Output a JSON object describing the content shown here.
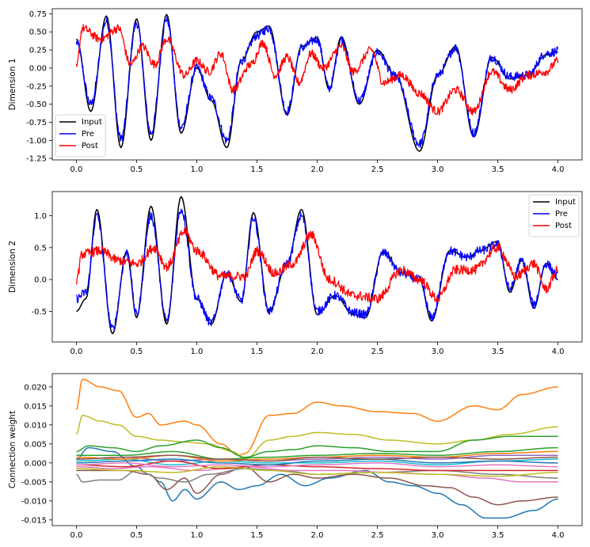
{
  "chart_data": [
    {
      "type": "line",
      "ylabel": "Dimension 1",
      "xlim": [
        -0.2,
        4.2
      ],
      "ylim": [
        -1.27,
        0.82
      ],
      "xticks": [
        "0.0",
        "0.5",
        "1.0",
        "1.5",
        "2.0",
        "2.5",
        "3.0",
        "3.5",
        "4.0"
      ],
      "yticks": [
        "0.75",
        "0.50",
        "0.25",
        "0.00",
        "-0.25",
        "-0.50",
        "-0.75",
        "-1.00",
        "-1.25"
      ],
      "legend_placement": "lower-left",
      "series": [
        {
          "name": "Input",
          "color": "#000000",
          "noise": 0,
          "x": [
            0,
            0.12,
            0.25,
            0.37,
            0.5,
            0.62,
            0.75,
            0.87,
            1.0,
            1.12,
            1.25,
            1.37,
            1.5,
            1.6,
            1.75,
            1.87,
            2.0,
            2.1,
            2.2,
            2.35,
            2.5,
            2.65,
            2.85,
            3.0,
            3.15,
            3.3,
            3.45,
            3.6,
            3.75,
            3.9,
            4.0
          ],
          "y": [
            0.4,
            -0.6,
            0.72,
            -1.1,
            0.68,
            -1.0,
            0.74,
            -0.9,
            0.0,
            -0.45,
            -1.1,
            0.1,
            0.5,
            0.58,
            -0.65,
            0.3,
            0.42,
            -0.3,
            0.43,
            -0.5,
            0.25,
            -0.1,
            -1.15,
            -0.1,
            0.3,
            -0.95,
            0.15,
            -0.15,
            -0.1,
            0.18,
            0.22
          ]
        },
        {
          "name": "Pre",
          "color": "#0000ff",
          "noise": 0.03,
          "x": [
            0,
            0.12,
            0.25,
            0.37,
            0.5,
            0.62,
            0.75,
            0.87,
            1.0,
            1.12,
            1.25,
            1.37,
            1.5,
            1.6,
            1.75,
            1.87,
            2.0,
            2.1,
            2.2,
            2.35,
            2.5,
            2.65,
            2.85,
            3.0,
            3.15,
            3.3,
            3.45,
            3.6,
            3.75,
            3.9,
            4.0
          ],
          "y": [
            0.35,
            -0.5,
            0.65,
            -0.98,
            0.62,
            -0.9,
            0.68,
            -0.82,
            0.0,
            -0.42,
            -1.0,
            0.1,
            0.45,
            0.55,
            -0.6,
            0.28,
            0.4,
            -0.28,
            0.4,
            -0.45,
            0.22,
            -0.12,
            -1.05,
            -0.1,
            0.28,
            -0.9,
            0.15,
            -0.12,
            -0.1,
            0.2,
            0.23
          ]
        },
        {
          "name": "Post",
          "color": "#ff0000",
          "noise": 0.028,
          "x": [
            0,
            0.05,
            0.2,
            0.35,
            0.45,
            0.55,
            0.65,
            0.75,
            0.9,
            1.0,
            1.1,
            1.2,
            1.3,
            1.45,
            1.55,
            1.65,
            1.75,
            1.85,
            1.95,
            2.05,
            2.2,
            2.3,
            2.45,
            2.55,
            2.7,
            2.85,
            3.0,
            3.15,
            3.3,
            3.45,
            3.6,
            3.75,
            3.9,
            4.0
          ],
          "y": [
            0.0,
            0.55,
            0.4,
            0.55,
            0.05,
            0.3,
            0.05,
            0.4,
            -0.1,
            0.1,
            -0.05,
            0.2,
            -0.3,
            0.05,
            0.35,
            -0.1,
            0.15,
            -0.2,
            0.2,
            0.0,
            0.3,
            -0.05,
            0.25,
            -0.2,
            -0.1,
            -0.35,
            -0.6,
            -0.3,
            -0.6,
            -0.05,
            -0.3,
            -0.1,
            -0.05,
            0.1
          ]
        }
      ]
    },
    {
      "type": "line",
      "ylabel": "Dimension 2",
      "xlim": [
        -0.2,
        4.2
      ],
      "ylim": [
        -0.98,
        1.38
      ],
      "xticks": [
        "0.0",
        "0.5",
        "1.0",
        "1.5",
        "2.0",
        "2.5",
        "3.0",
        "3.5",
        "4.0"
      ],
      "yticks": [
        "1.0",
        "0.5",
        "0.0",
        "-0.5"
      ],
      "legend_placement": "upper-right",
      "series": [
        {
          "name": "Input",
          "color": "#000000",
          "noise": 0,
          "x": [
            0,
            0.08,
            0.17,
            0.3,
            0.42,
            0.5,
            0.62,
            0.75,
            0.87,
            1.0,
            1.12,
            1.25,
            1.37,
            1.47,
            1.6,
            1.75,
            1.87,
            2.0,
            2.15,
            2.3,
            2.4,
            2.55,
            2.7,
            2.85,
            2.95,
            3.1,
            3.25,
            3.35,
            3.5,
            3.6,
            3.7,
            3.8,
            3.9,
            4.0
          ],
          "y": [
            -0.5,
            -0.3,
            1.1,
            -0.85,
            0.45,
            -0.6,
            1.15,
            -0.7,
            1.3,
            -0.3,
            -0.7,
            0.1,
            -0.35,
            1.05,
            -0.5,
            0.25,
            1.1,
            -0.55,
            -0.25,
            -0.55,
            -0.6,
            0.45,
            0.1,
            0.0,
            -0.65,
            0.45,
            0.35,
            0.45,
            0.6,
            -0.2,
            0.3,
            -0.45,
            0.25,
            0.0
          ]
        },
        {
          "name": "Pre",
          "color": "#0000ff",
          "noise": 0.03,
          "x": [
            0,
            0.08,
            0.17,
            0.3,
            0.42,
            0.5,
            0.62,
            0.75,
            0.87,
            1.0,
            1.12,
            1.25,
            1.37,
            1.47,
            1.6,
            1.75,
            1.87,
            2.0,
            2.15,
            2.3,
            2.4,
            2.55,
            2.7,
            2.85,
            2.95,
            3.1,
            3.25,
            3.35,
            3.5,
            3.6,
            3.7,
            3.8,
            3.9,
            4.0
          ],
          "y": [
            -0.3,
            -0.2,
            1.0,
            -0.78,
            0.42,
            -0.55,
            1.0,
            -0.65,
            1.1,
            -0.3,
            -0.68,
            0.1,
            -0.33,
            0.97,
            -0.5,
            0.25,
            1.0,
            -0.5,
            -0.25,
            -0.52,
            -0.55,
            0.42,
            0.1,
            0.0,
            -0.6,
            0.45,
            0.35,
            0.45,
            0.55,
            -0.15,
            0.3,
            -0.4,
            0.25,
            0.05
          ]
        },
        {
          "name": "Post",
          "color": "#ff0000",
          "noise": 0.032,
          "x": [
            0,
            0.05,
            0.2,
            0.35,
            0.5,
            0.65,
            0.75,
            0.9,
            1.0,
            1.2,
            1.4,
            1.5,
            1.65,
            1.8,
            1.95,
            2.1,
            2.3,
            2.5,
            2.7,
            2.85,
            3.0,
            3.15,
            3.3,
            3.5,
            3.65,
            3.8,
            3.9,
            4.0
          ],
          "y": [
            0.0,
            0.4,
            0.45,
            0.3,
            0.25,
            0.5,
            0.2,
            0.75,
            0.45,
            0.05,
            0.05,
            0.45,
            0.1,
            0.25,
            0.7,
            0.0,
            -0.25,
            -0.3,
            0.15,
            0.0,
            -0.3,
            0.15,
            0.15,
            0.5,
            0.05,
            0.25,
            -0.15,
            0.15
          ]
        }
      ]
    },
    {
      "type": "line",
      "ylabel": "Connection weight",
      "xlim": [
        -0.2,
        4.2
      ],
      "ylim": [
        -0.0165,
        0.0235
      ],
      "xticks": [
        "0.0",
        "0.5",
        "1.0",
        "1.5",
        "2.0",
        "2.5",
        "3.0",
        "3.5",
        "4.0"
      ],
      "yticks": [
        "0.020",
        "0.015",
        "0.010",
        "0.005",
        "0.000",
        "-0.005",
        "-0.010",
        "-0.015"
      ],
      "legend_placement": "none",
      "series": [
        {
          "color": "#ff7f0e",
          "x": [
            0.0,
            0.05,
            0.2,
            0.35,
            0.5,
            0.6,
            0.7,
            0.9,
            1.0,
            1.2,
            1.35,
            1.4,
            1.6,
            1.8,
            2.0,
            2.2,
            2.5,
            2.8,
            3.0,
            3.3,
            3.5,
            3.7,
            4.0
          ],
          "y": [
            0.014,
            0.022,
            0.02,
            0.019,
            0.012,
            0.013,
            0.01,
            0.011,
            0.01,
            0.005,
            0.002,
            0.0025,
            0.0125,
            0.013,
            0.016,
            0.015,
            0.0135,
            0.013,
            0.011,
            0.015,
            0.014,
            0.018,
            0.02
          ]
        },
        {
          "color": "#bcbd22",
          "x": [
            0.0,
            0.05,
            0.2,
            0.35,
            0.5,
            0.7,
            0.9,
            1.1,
            1.3,
            1.4,
            1.6,
            1.8,
            2.0,
            2.3,
            2.6,
            3.0,
            3.3,
            3.6,
            4.0
          ],
          "y": [
            0.0075,
            0.0125,
            0.011,
            0.01,
            0.007,
            0.006,
            0.0055,
            0.005,
            0.003,
            0.001,
            0.006,
            0.007,
            0.008,
            0.0075,
            0.006,
            0.005,
            0.006,
            0.0075,
            0.0095
          ]
        },
        {
          "color": "#2ca02c",
          "x": [
            0.0,
            0.1,
            0.3,
            0.5,
            0.7,
            1.0,
            1.2,
            1.4,
            1.6,
            1.8,
            2.0,
            2.3,
            2.6,
            3.0,
            3.3,
            3.6,
            4.0
          ],
          "y": [
            0.003,
            0.0045,
            0.004,
            0.003,
            0.0045,
            0.006,
            0.004,
            0.0015,
            0.003,
            0.0035,
            0.0045,
            0.004,
            0.003,
            0.003,
            0.006,
            0.007,
            0.007
          ]
        },
        {
          "color": "#1f77b4",
          "x": [
            0.0,
            0.1,
            0.3,
            0.5,
            0.6,
            0.7,
            0.8,
            0.9,
            1.0,
            1.2,
            1.35,
            1.5,
            1.7,
            1.9,
            2.1,
            2.4,
            2.6,
            2.8,
            3.0,
            3.2,
            3.4,
            3.55,
            3.8,
            4.0
          ],
          "y": [
            0.001,
            0.004,
            0.003,
            -0.001,
            -0.003,
            -0.005,
            -0.01,
            -0.007,
            -0.0095,
            -0.005,
            -0.007,
            -0.006,
            -0.003,
            -0.006,
            -0.004,
            -0.002,
            -0.005,
            -0.006,
            -0.008,
            -0.011,
            -0.0145,
            -0.0145,
            -0.0125,
            -0.0095
          ]
        },
        {
          "color": "#8c564b",
          "x": [
            0.0,
            0.2,
            0.4,
            0.6,
            0.75,
            0.9,
            1.0,
            1.2,
            1.4,
            1.6,
            1.8,
            2.0,
            2.3,
            2.6,
            2.9,
            3.1,
            3.3,
            3.5,
            3.7,
            4.0
          ],
          "y": [
            -0.002,
            -0.002,
            -0.002,
            -0.003,
            -0.007,
            -0.004,
            -0.008,
            -0.003,
            -0.001,
            -0.005,
            -0.003,
            -0.004,
            -0.003,
            -0.004,
            -0.006,
            -0.0065,
            -0.009,
            -0.011,
            -0.01,
            -0.009
          ]
        },
        {
          "color": "#7f7f7f",
          "x": [
            0.0,
            0.05,
            0.2,
            0.35,
            0.5,
            0.7,
            0.9,
            1.1,
            1.4,
            1.7,
            2.0,
            2.5,
            3.0,
            3.5,
            4.0
          ],
          "y": [
            -0.003,
            -0.005,
            -0.0045,
            -0.0045,
            -0.002,
            -0.004,
            -0.005,
            -0.003,
            -0.0015,
            -0.002,
            -0.003,
            -0.0025,
            -0.002,
            -0.003,
            -0.004
          ]
        },
        {
          "color": "#e377c2",
          "x": [
            0.0,
            0.3,
            0.6,
            1.0,
            1.4,
            1.8,
            2.2,
            2.6,
            3.0,
            3.4,
            3.7,
            4.0
          ],
          "y": [
            -0.001,
            -0.0015,
            -0.001,
            -0.002,
            -0.001,
            -0.002,
            -0.002,
            -0.0025,
            -0.003,
            -0.004,
            -0.005,
            -0.005
          ]
        },
        {
          "color": "#9467bd",
          "x": [
            0.0,
            0.4,
            0.8,
            1.2,
            1.6,
            2.0,
            2.5,
            3.0,
            3.5,
            4.0
          ],
          "y": [
            0.001,
            0.0015,
            0.0005,
            0.001,
            0.0005,
            0.001,
            0.0015,
            0.001,
            0.002,
            0.002
          ]
        },
        {
          "color": "#17becf",
          "x": [
            0.0,
            0.4,
            0.8,
            1.2,
            1.6,
            2.0,
            2.5,
            3.0,
            3.5,
            4.0
          ],
          "y": [
            0.0005,
            0.001,
            -0.0005,
            0.0005,
            0.0,
            0.0,
            0.0005,
            -0.0005,
            0.0005,
            0.001
          ]
        },
        {
          "color": "#d62728",
          "x": [
            0.0,
            0.4,
            0.8,
            1.2,
            1.6,
            2.0,
            2.5,
            3.0,
            3.5,
            4.0
          ],
          "y": [
            -0.0005,
            -0.001,
            0.0005,
            -0.0015,
            -0.0005,
            -0.001,
            -0.0015,
            -0.002,
            -0.002,
            -0.002
          ]
        },
        {
          "color": "#ff7f0e",
          "x": [
            0.0,
            0.4,
            0.8,
            1.2,
            1.6,
            2.0,
            2.5,
            3.0,
            3.5,
            4.0
          ],
          "y": [
            0.0015,
            0.001,
            0.002,
            0.0005,
            0.001,
            0.0015,
            0.002,
            0.0015,
            0.0025,
            0.003
          ]
        },
        {
          "color": "#2ca02c",
          "x": [
            0.0,
            0.4,
            0.8,
            1.2,
            1.6,
            2.0,
            2.5,
            3.0,
            3.5,
            4.0
          ],
          "y": [
            0.002,
            0.002,
            0.003,
            0.001,
            0.0015,
            0.002,
            0.0025,
            0.002,
            0.003,
            0.004
          ]
        },
        {
          "color": "#bcbd22",
          "x": [
            0.0,
            0.4,
            0.8,
            1.2,
            1.6,
            2.0,
            2.5,
            3.0,
            3.5,
            4.0
          ],
          "y": [
            -0.0015,
            -0.002,
            -0.0025,
            -0.001,
            -0.002,
            -0.003,
            -0.0025,
            -0.003,
            -0.0035,
            -0.0025
          ]
        },
        {
          "color": "#1f77b4",
          "x": [
            0.0,
            0.4,
            0.8,
            1.2,
            1.6,
            2.0,
            2.5,
            3.0,
            3.5,
            4.0
          ],
          "y": [
            0.0,
            0.0005,
            0.001,
            0.0,
            -0.0005,
            0.0005,
            0.001,
            0.0,
            0.0005,
            0.0
          ]
        },
        {
          "color": "#8c564b",
          "x": [
            0.0,
            0.4,
            0.8,
            1.2,
            1.6,
            2.0,
            2.5,
            3.0,
            3.5,
            4.0
          ],
          "y": [
            0.001,
            0.0015,
            0.002,
            0.001,
            0.0005,
            0.0015,
            0.001,
            0.0015,
            0.001,
            0.0015
          ]
        },
        {
          "color": "#e377c2",
          "x": [
            0.0,
            0.4,
            0.8,
            1.2,
            1.6,
            2.0,
            2.5,
            3.0,
            3.5,
            4.0
          ],
          "y": [
            -0.0005,
            0.0,
            -0.001,
            -0.0005,
            -0.001,
            -0.0005,
            0.0,
            -0.001,
            -0.0005,
            -0.001
          ]
        }
      ]
    }
  ]
}
